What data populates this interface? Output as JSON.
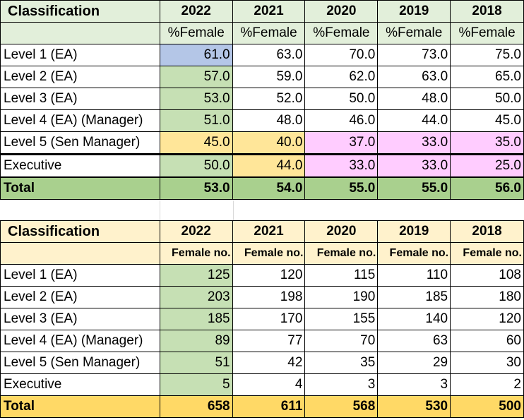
{
  "table1": {
    "classification_label": "Classification",
    "years": [
      "2022",
      "2021",
      "2020",
      "2019",
      "2018"
    ],
    "subheader": [
      "%Female",
      "%Female",
      "%Female",
      "%Female",
      "%Female"
    ],
    "rows": [
      {
        "label": "Level 1 (EA)",
        "values": [
          "61.0",
          "63.0",
          "70.0",
          "73.0",
          "75.0"
        ]
      },
      {
        "label": "Level 2 (EA)",
        "values": [
          "57.0",
          "59.0",
          "62.0",
          "63.0",
          "65.0"
        ]
      },
      {
        "label": "Level 3 (EA)",
        "values": [
          "53.0",
          "52.0",
          "50.0",
          "48.0",
          "50.0"
        ]
      },
      {
        "label": "Level 4 (EA) (Manager)",
        "values": [
          "51.0",
          "48.0",
          "46.0",
          "44.0",
          "45.0"
        ]
      },
      {
        "label": "Level 5 (Sen Manager)",
        "values": [
          "45.0",
          "40.0",
          "37.0",
          "33.0",
          "35.0"
        ]
      },
      {
        "label": "Executive",
        "values": [
          "50.0",
          "44.0",
          "33.0",
          "33.0",
          "25.0"
        ]
      }
    ],
    "total": {
      "label": "Total",
      "values": [
        "53.0",
        "54.0",
        "55.0",
        "55.0",
        "56.0"
      ]
    }
  },
  "table2": {
    "classification_label": "Classification",
    "years": [
      "2022",
      "2021",
      "2020",
      "2019",
      "2018"
    ],
    "subheader": [
      "Female no.",
      "Female no.",
      "Female no.",
      "Female no.",
      "Female no."
    ],
    "rows": [
      {
        "label": "Level 1 (EA)",
        "values": [
          "125",
          "120",
          "115",
          "110",
          "108"
        ]
      },
      {
        "label": "Level 2 (EA)",
        "values": [
          "203",
          "198",
          "190",
          "185",
          "180"
        ]
      },
      {
        "label": "Level 3 (EA)",
        "values": [
          "185",
          "170",
          "155",
          "140",
          "120"
        ]
      },
      {
        "label": "Level 4 (EA) (Manager)",
        "values": [
          "89",
          "77",
          "70",
          "63",
          "60"
        ]
      },
      {
        "label": "Level 5 (Sen Manager)",
        "values": [
          "51",
          "42",
          "35",
          "29",
          "30"
        ]
      },
      {
        "label": "Executive",
        "values": [
          "5",
          "4",
          "3",
          "3",
          "2"
        ]
      }
    ],
    "total": {
      "label": "Total",
      "values": [
        "658",
        "611",
        "568",
        "530",
        "500"
      ]
    }
  },
  "colors": {
    "header_green": "#e2efda",
    "total_green": "#a9d08e",
    "cell_green": "#c6e0b4",
    "cell_blue": "#b4c6e7",
    "cell_yellow": "#ffe699",
    "cell_pink": "#ffccff",
    "header_cream": "#fff2cc",
    "total_gold": "#ffd966"
  }
}
